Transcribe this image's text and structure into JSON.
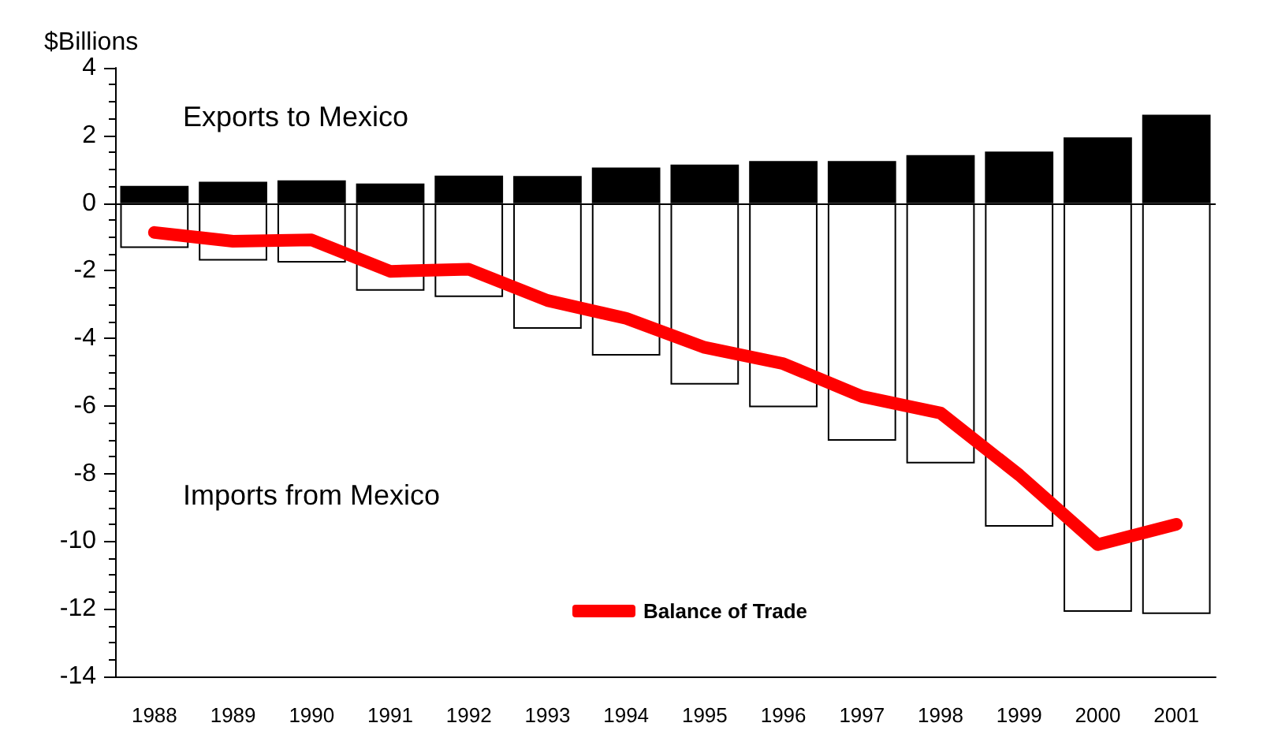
{
  "chart_data": {
    "type": "bar",
    "ylabel": "$Billions",
    "categories": [
      "1988",
      "1989",
      "1990",
      "1991",
      "1992",
      "1993",
      "1994",
      "1995",
      "1996",
      "1997",
      "1998",
      "1999",
      "2000",
      "2001"
    ],
    "stacked": true,
    "series": [
      {
        "color": "#000000",
        "values": [
          0.51,
          0.63,
          0.67,
          0.58,
          0.81,
          0.8,
          1.05,
          1.14,
          1.24,
          1.24,
          1.42,
          1.52,
          1.94,
          2.61
        ]
      },
      {
        "color": "#ffffff",
        "values": [
          -1.33,
          -1.7,
          -1.76,
          -2.59,
          -2.78,
          -3.72,
          -4.51,
          -5.37,
          -6.04,
          -7.03,
          -7.7,
          -9.57,
          -12.09,
          -12.15
        ]
      },
      {
        "type": "line",
        "name": "Balance of Trade",
        "color": "#ff0000",
        "values": [
          -0.87,
          -1.13,
          -1.09,
          -2.02,
          -1.96,
          -2.88,
          -3.41,
          -4.27,
          -4.75,
          -5.72,
          -6.21,
          -8.04,
          -10.1,
          -9.5
        ]
      }
    ],
    "ylim": [
      -14,
      4
    ],
    "yticks": [
      -14,
      -12,
      -10,
      -8,
      -6,
      -4,
      -2,
      0,
      2,
      4
    ],
    "annotations": [
      "Exports to Mexico",
      "Imports from Mexico"
    ],
    "ref_lines": [
      {
        "axis": "y",
        "value": 0,
        "color": "#000000"
      }
    ],
    "legend": "bottom"
  }
}
